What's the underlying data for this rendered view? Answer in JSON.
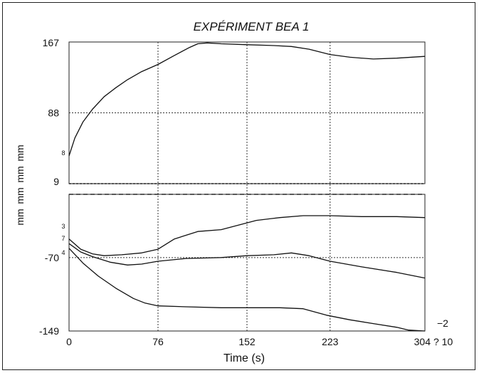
{
  "chart_data": {
    "type": "line",
    "title": "EXPÉRIMENT BEA 1",
    "xlabel": "Time (s)",
    "ylabel_units": [
      "mm",
      "mm",
      "mm",
      "mm"
    ],
    "xlim": [
      0,
      304
    ],
    "x_ticks": [
      "0",
      "76",
      "152",
      "223",
      "304"
    ],
    "x_extra_label": "? 10",
    "upper_panel": {
      "ylim": [
        9,
        167
      ],
      "y_ticks": [
        "167",
        "88",
        "9"
      ],
      "series_markers": [
        "8"
      ],
      "series": [
        {
          "points": [
            [
              0,
              40
            ],
            [
              5,
              60
            ],
            [
              12,
              78
            ],
            [
              20,
              92
            ],
            [
              30,
              106
            ],
            [
              40,
              116
            ],
            [
              50,
              125
            ],
            [
              62,
              134
            ],
            [
              76,
              142
            ],
            [
              90,
              152
            ],
            [
              103,
              161
            ],
            [
              110,
              165
            ],
            [
              118,
              166
            ],
            [
              130,
              165
            ],
            [
              152,
              164
            ],
            [
              175,
              163
            ],
            [
              190,
              162
            ],
            [
              205,
              159
            ],
            [
              223,
              153
            ],
            [
              240,
              150
            ],
            [
              260,
              148
            ],
            [
              280,
              149
            ],
            [
              304,
              151
            ]
          ]
        }
      ]
    },
    "divider_lines": 2,
    "lower_panel": {
      "ylim": [
        -149,
        -2
      ],
      "y_ticks": [
        "-70",
        "-149"
      ],
      "right_label": "−2",
      "series_markers": [
        "3",
        "7",
        "4"
      ],
      "series": [
        {
          "points": [
            [
              0,
              -50
            ],
            [
              10,
              -61
            ],
            [
              20,
              -66
            ],
            [
              30,
              -68
            ],
            [
              45,
              -67
            ],
            [
              62,
              -65
            ],
            [
              76,
              -61
            ],
            [
              90,
              -50
            ],
            [
              110,
              -42
            ],
            [
              130,
              -40
            ],
            [
              145,
              -35
            ],
            [
              160,
              -30
            ],
            [
              180,
              -27
            ],
            [
              200,
              -25
            ],
            [
              223,
              -25
            ],
            [
              250,
              -26
            ],
            [
              280,
              -26
            ],
            [
              304,
              -27
            ]
          ]
        },
        {
          "points": [
            [
              0,
              -55
            ],
            [
              10,
              -64
            ],
            [
              20,
              -69
            ],
            [
              35,
              -75
            ],
            [
              50,
              -78
            ],
            [
              62,
              -77
            ],
            [
              76,
              -74
            ],
            [
              100,
              -71
            ],
            [
              130,
              -70
            ],
            [
              152,
              -68
            ],
            [
              175,
              -67
            ],
            [
              190,
              -65
            ],
            [
              205,
              -68
            ],
            [
              223,
              -74
            ],
            [
              250,
              -80
            ],
            [
              280,
              -86
            ],
            [
              304,
              -92
            ]
          ]
        },
        {
          "points": [
            [
              0,
              -60
            ],
            [
              12,
              -76
            ],
            [
              25,
              -90
            ],
            [
              40,
              -103
            ],
            [
              55,
              -114
            ],
            [
              65,
              -119
            ],
            [
              76,
              -122
            ],
            [
              100,
              -123
            ],
            [
              130,
              -124
            ],
            [
              152,
              -124
            ],
            [
              180,
              -124
            ],
            [
              200,
              -125
            ],
            [
              220,
              -132
            ],
            [
              240,
              -137
            ],
            [
              260,
              -141
            ],
            [
              280,
              -145
            ],
            [
              290,
              -148
            ],
            [
              304,
              -149
            ]
          ]
        }
      ]
    }
  }
}
